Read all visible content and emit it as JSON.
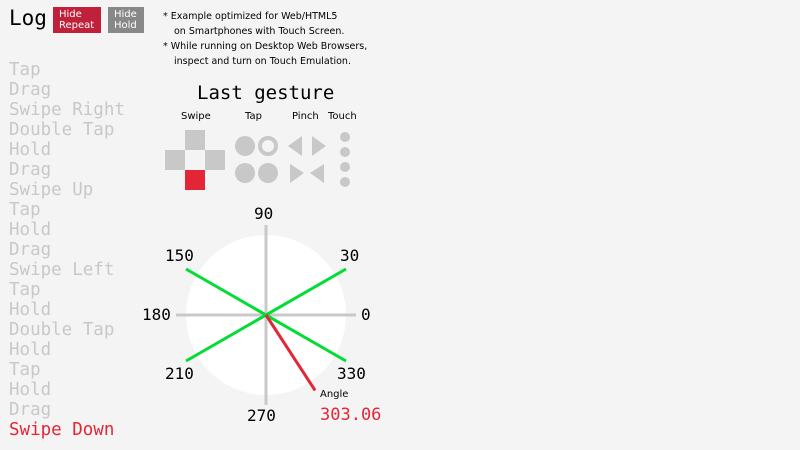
{
  "header": {
    "title": "Log",
    "hide_repeat": "Hide\nRepeat",
    "hide_repeat_l1": "Hide",
    "hide_repeat_l2": "Repeat",
    "hide_hold_l1": "Hide",
    "hide_hold_l2": "Hold"
  },
  "notes": [
    "* Example optimized for Web/HTML5",
    "on Smartphones with Touch Screen.",
    "* While running on Desktop Web Browsers,",
    "inspect and turn on Touch Emulation."
  ],
  "log": [
    "Tap",
    "Drag",
    "Swipe Right",
    "Double Tap",
    "Hold",
    "Drag",
    "Swipe Up",
    "Tap",
    "Hold",
    "Drag",
    "Swipe Left",
    "Tap",
    "Hold",
    "Double Tap",
    "Hold",
    "Tap",
    "Hold",
    "Drag",
    "Swipe Down"
  ],
  "gesture": {
    "title": "Last gesture",
    "labels": [
      "Swipe",
      "Tap",
      "Pinch",
      "Touch"
    ],
    "active_swipe": "down"
  },
  "dial": {
    "ticks": [
      "90",
      "30",
      "0",
      "330",
      "270",
      "210",
      "180",
      "150"
    ],
    "angle_label": "Angle",
    "angle": "303.06",
    "colors": {
      "active": "#e32636",
      "lines": "#00dd33",
      "axis": "#c8c8c8"
    }
  }
}
